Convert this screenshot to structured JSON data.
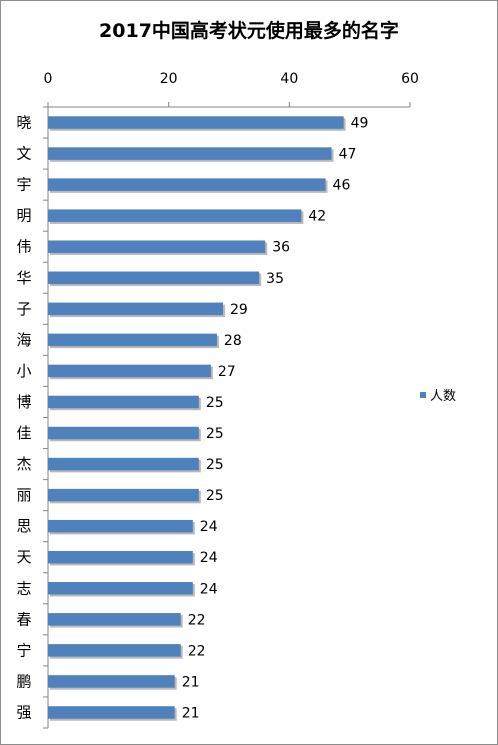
{
  "chart_data": {
    "type": "bar",
    "title": "2017中国高考状元使用最多的名字",
    "categories": [
      "晓",
      "文",
      "宇",
      "明",
      "伟",
      "华",
      "子",
      "海",
      "小",
      "博",
      "佳",
      "杰",
      "丽",
      "思",
      "天",
      "志",
      "春",
      "宁",
      "鹏",
      "强"
    ],
    "series": [
      {
        "name": "人数",
        "values": [
          49,
          47,
          46,
          42,
          36,
          35,
          29,
          28,
          27,
          25,
          25,
          25,
          25,
          24,
          24,
          24,
          22,
          22,
          21,
          21
        ]
      }
    ],
    "xlim": [
      0,
      60
    ],
    "xticks": [
      0,
      20,
      40,
      60
    ],
    "orientation": "horizontal",
    "axis_position": "top",
    "grid": false,
    "legend_position": "right",
    "bar_color": "#4f81bd"
  }
}
